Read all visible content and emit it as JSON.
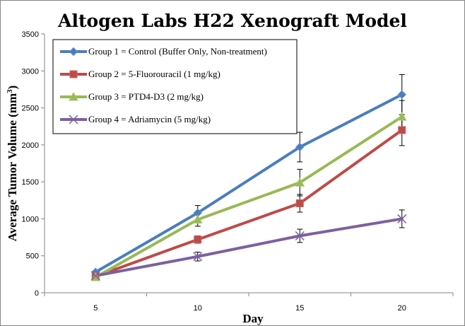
{
  "chart_data": {
    "type": "line",
    "title": "Altogen Labs H22 Xenograft Model",
    "xlabel": "Day",
    "ylabel_main": "Average Tumor Volume (mm",
    "ylabel_sup": "3",
    "ylabel_close": ")",
    "x": [
      5,
      10,
      15,
      20
    ],
    "x_ticks": [
      "5",
      "10",
      "15",
      "20"
    ],
    "xlim": [
      2.5,
      22.5
    ],
    "ylim": [
      0,
      3500
    ],
    "y_ticks": [
      0,
      500,
      1000,
      1500,
      2000,
      2500,
      3000,
      3500
    ],
    "grid": false,
    "legend_position": "top-left",
    "series": [
      {
        "name": "Group 1 = Control (Buffer Only, Non-treatment)",
        "color": "#4a7ebb",
        "marker": "diamond",
        "values": [
          280,
          1080,
          1970,
          2680
        ],
        "errors": [
          0,
          100,
          200,
          270
        ]
      },
      {
        "name": "Group 2 = 5-Fluorouracil (1 mg/kg)",
        "color": "#be4b48",
        "marker": "square",
        "values": [
          220,
          720,
          1210,
          2200
        ],
        "errors": [
          0,
          50,
          120,
          210
        ]
      },
      {
        "name": "Group 3 = PTD4-D3 (2 mg/kg)",
        "color": "#98b954",
        "marker": "triangle",
        "values": [
          210,
          990,
          1490,
          2380
        ],
        "errors": [
          0,
          90,
          180,
          220
        ]
      },
      {
        "name": "Group 4 = Adriamycin (5 mg/kg)",
        "color": "#7d60a0",
        "marker": "x",
        "values": [
          230,
          490,
          770,
          1000
        ],
        "errors": [
          0,
          60,
          90,
          120
        ]
      }
    ]
  }
}
